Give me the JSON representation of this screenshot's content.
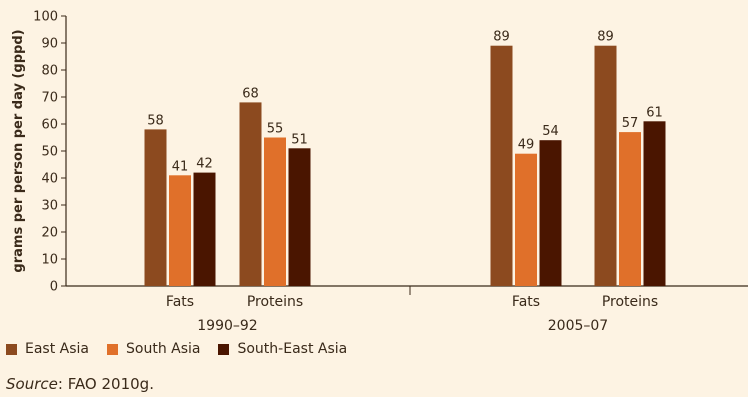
{
  "chart_data": {
    "type": "bar",
    "ylabel": "grams per person per day (gppd)",
    "ylim": [
      0,
      100
    ],
    "yticks": [
      0,
      10,
      20,
      30,
      40,
      50,
      60,
      70,
      80,
      90,
      100
    ],
    "grid": false,
    "groups": [
      {
        "period": "1990–92",
        "categories": [
          "Fats",
          "Proteins"
        ]
      },
      {
        "period": "2005–07",
        "categories": [
          "Fats",
          "Proteins"
        ]
      }
    ],
    "series": [
      {
        "name": "East Asia",
        "color": "#8c4a1f",
        "values": [
          58,
          68,
          89,
          89
        ]
      },
      {
        "name": "South Asia",
        "color": "#e0702a",
        "values": [
          41,
          55,
          49,
          57
        ]
      },
      {
        "name": "South-East Asia",
        "color": "#4a1500",
        "values": [
          42,
          51,
          54,
          61
        ]
      }
    ],
    "legend_position": "bottom-left"
  },
  "source": {
    "label": "Source",
    "text": "FAO 2010g."
  }
}
